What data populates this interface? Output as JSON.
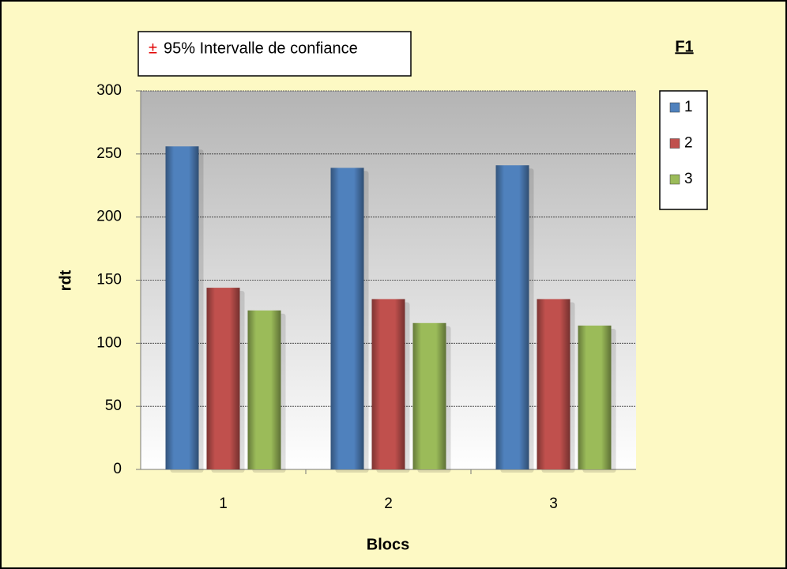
{
  "chart_data": {
    "type": "bar",
    "title": "F1",
    "annotation_symbol": "±",
    "annotation": "95% Intervalle de confiance",
    "xlabel": "Blocs",
    "ylabel": "rdt",
    "categories": [
      "1",
      "2",
      "3"
    ],
    "series": [
      {
        "name": "1",
        "color": "#4f81bd",
        "values": [
          256,
          239,
          241
        ]
      },
      {
        "name": "2",
        "color": "#c0504d",
        "values": [
          144,
          135,
          135
        ]
      },
      {
        "name": "3",
        "color": "#9bbb59",
        "values": [
          126,
          116,
          114
        ]
      }
    ],
    "ylim": [
      0,
      300
    ],
    "yticks": [
      0,
      50,
      100,
      150,
      200,
      250,
      300
    ],
    "grid": true,
    "legend": "right"
  }
}
